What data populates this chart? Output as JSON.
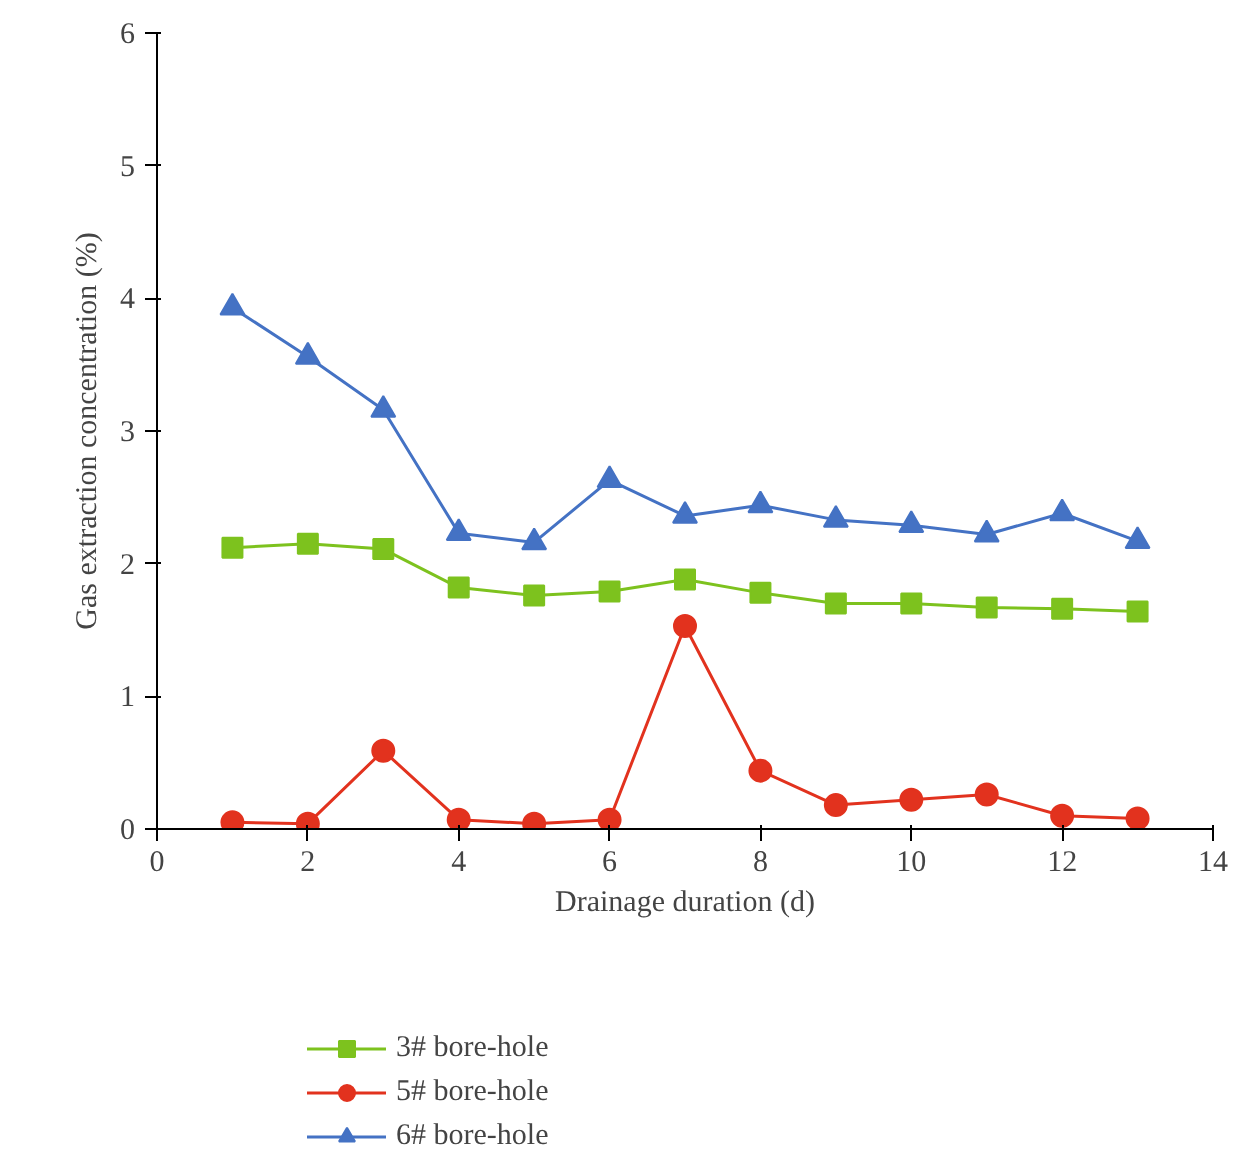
{
  "chart_data": {
    "type": "line",
    "xlabel": "Drainage duration (d)",
    "ylabel": "Gas extraction concentration (%)",
    "x": [
      1,
      2,
      3,
      4,
      5,
      6,
      7,
      8,
      9,
      10,
      11,
      12,
      13
    ],
    "series": [
      {
        "name": "3# bore-hole",
        "color": "#7dc21e",
        "marker": "square",
        "values": [
          2.12,
          2.15,
          2.11,
          1.82,
          1.76,
          1.79,
          1.88,
          1.78,
          1.7,
          1.7,
          1.67,
          1.66,
          1.64
        ]
      },
      {
        "name": "5# bore-hole",
        "color": "#e2321e",
        "marker": "circle",
        "values": [
          0.05,
          0.04,
          0.59,
          0.07,
          0.04,
          0.07,
          1.53,
          0.44,
          0.18,
          0.22,
          0.26,
          0.1,
          0.08
        ]
      },
      {
        "name": "6# bore-hole",
        "color": "#4472c4",
        "marker": "triangle",
        "values": [
          3.93,
          3.56,
          3.16,
          2.23,
          2.16,
          2.63,
          2.36,
          2.44,
          2.33,
          2.29,
          2.22,
          2.38,
          2.17
        ]
      }
    ],
    "xlim": [
      0,
      14
    ],
    "xticks": [
      0,
      2,
      4,
      6,
      8,
      10,
      12,
      14
    ],
    "ylim": [
      0,
      6
    ],
    "yticks": [
      0,
      1,
      2,
      3,
      4,
      5,
      6
    ],
    "grid": false,
    "legend": "bottom"
  }
}
